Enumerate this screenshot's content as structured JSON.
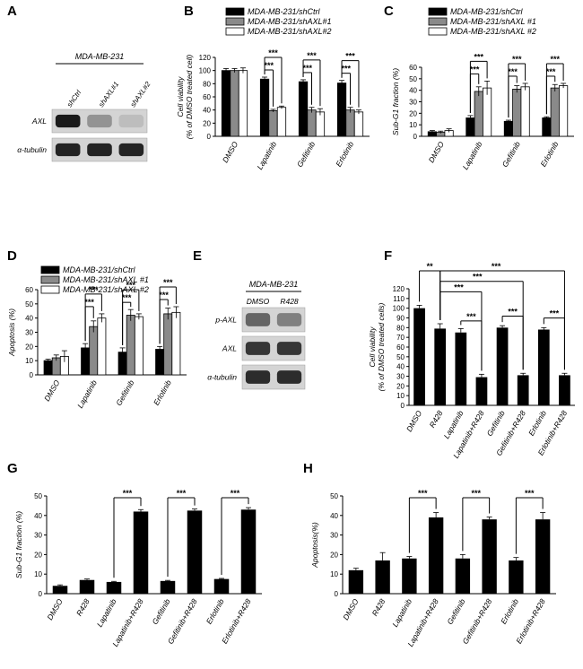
{
  "colors": {
    "black": "#000000",
    "gray": "#8a8a8a",
    "white": "#ffffff",
    "blot_bg": "#d4d4d4",
    "band": "#1a1a1a"
  },
  "blots": [
    {
      "letter": "A",
      "cell_line": "MDA-MB-231",
      "lanes": [
        "shCtrl",
        "shAXL#1",
        "shAXL#2"
      ],
      "rows": [
        {
          "label": "AXL",
          "intensity": [
            1.0,
            0.35,
            0.12
          ]
        },
        {
          "label": "α-tubulin",
          "intensity": [
            0.95,
            0.95,
            0.95
          ]
        }
      ]
    },
    {
      "letter": "E",
      "cell_line": "MDA-MB-231",
      "lanes": [
        "DMSO",
        "R428"
      ],
      "rows": [
        {
          "label": "p-AXL",
          "intensity": [
            0.6,
            0.45
          ]
        },
        {
          "label": "AXL",
          "intensity": [
            0.85,
            0.85
          ]
        },
        {
          "label": "α-tubulin",
          "intensity": [
            0.9,
            0.9
          ]
        }
      ]
    }
  ],
  "chart_data": [
    {
      "letter": "B",
      "type": "bar",
      "ylabel": [
        "Cell viability",
        "(% of DMSO treated cell)"
      ],
      "ylim": [
        0,
        120
      ],
      "yticks": [
        0,
        20,
        40,
        60,
        80,
        100,
        120
      ],
      "categories": [
        "DMSO",
        "Lapatinib",
        "Gefitinib",
        "Erlotinib"
      ],
      "legend": [
        "MDA-MB-231/shCtrl",
        "MDA-MB-231/shAXL#1",
        "MDA-MB-231/shAXL#2"
      ],
      "series": [
        {
          "name": "MDA-MB-231/shCtrl",
          "color": "black",
          "values": [
            100,
            87,
            83,
            81
          ],
          "errors": [
            3,
            3,
            3,
            4
          ]
        },
        {
          "name": "MDA-MB-231/shAXL#1",
          "color": "gray",
          "values": [
            100,
            39,
            40,
            40
          ],
          "errors": [
            3,
            2,
            4,
            4
          ]
        },
        {
          "name": "MDA-MB-231/shAXL#2",
          "color": "white",
          "values": [
            100,
            44,
            37,
            37
          ],
          "errors": [
            4,
            2,
            5,
            3
          ]
        }
      ],
      "sig": [
        {
          "cat": 1,
          "a": 0,
          "b": 1,
          "label": "***",
          "level": 0
        },
        {
          "cat": 1,
          "a": 0,
          "b": 2,
          "label": "***",
          "level": 1
        },
        {
          "cat": 2,
          "a": 0,
          "b": 1,
          "label": "***",
          "level": 0
        },
        {
          "cat": 2,
          "a": 0,
          "b": 2,
          "label": "***",
          "level": 1
        },
        {
          "cat": 3,
          "a": 0,
          "b": 1,
          "label": "***",
          "level": 0
        },
        {
          "cat": 3,
          "a": 0,
          "b": 2,
          "label": "***",
          "level": 1
        }
      ]
    },
    {
      "letter": "C",
      "type": "bar",
      "ylabel": [
        "Sub-G1 fraction (%)"
      ],
      "ylim": [
        0,
        60
      ],
      "yticks": [
        0,
        10,
        20,
        30,
        40,
        50,
        60
      ],
      "categories": [
        "DMSO",
        "Lapatinib",
        "Gefitinib",
        "Erlotinib"
      ],
      "legend": [
        "MDA-MB-231/shCtrl",
        "MDA-MB-231/shAXL #1",
        "MDA-MB-231/shAXL #2"
      ],
      "series": [
        {
          "name": "MDA-MB-231/shCtrl",
          "color": "black",
          "values": [
            4,
            16,
            13,
            16
          ],
          "errors": [
            1,
            2,
            1,
            1
          ]
        },
        {
          "name": "MDA-MB-231/shAXL #1",
          "color": "gray",
          "values": [
            3.5,
            39,
            41,
            42
          ],
          "errors": [
            1,
            4,
            3,
            3
          ]
        },
        {
          "name": "MDA-MB-231/shAXL #2",
          "color": "white",
          "values": [
            5,
            42,
            43,
            44
          ],
          "errors": [
            1.5,
            6,
            3,
            2
          ]
        }
      ],
      "sig": [
        {
          "cat": 1,
          "a": 0,
          "b": 1,
          "label": "***",
          "level": 0
        },
        {
          "cat": 1,
          "a": 0,
          "b": 2,
          "label": "***",
          "level": 1
        },
        {
          "cat": 2,
          "a": 0,
          "b": 1,
          "label": "***",
          "level": 0
        },
        {
          "cat": 2,
          "a": 0,
          "b": 2,
          "label": "***",
          "level": 1
        },
        {
          "cat": 3,
          "a": 0,
          "b": 1,
          "label": "***",
          "level": 0
        },
        {
          "cat": 3,
          "a": 0,
          "b": 2,
          "label": "***",
          "level": 1
        }
      ]
    },
    {
      "letter": "D",
      "type": "bar",
      "ylabel": [
        "Apoptosis (%)"
      ],
      "ylim": [
        0,
        60
      ],
      "yticks": [
        0,
        10,
        20,
        30,
        40,
        50,
        60
      ],
      "categories": [
        "DMSO",
        "Lapatinib",
        "Gefitinib",
        "Erlotinib"
      ],
      "legend": [
        "MDA-MB-231/shCtrl",
        "MDA-MB-231/shAXL #1",
        "MDA-MB-231/shAXL #2"
      ],
      "series": [
        {
          "name": "MDA-MB-231/shCtrl",
          "color": "black",
          "values": [
            10,
            19,
            16,
            18
          ],
          "errors": [
            1,
            3,
            3,
            2
          ]
        },
        {
          "name": "MDA-MB-231/shAXL #1",
          "color": "gray",
          "values": [
            12,
            34,
            42,
            43
          ],
          "errors": [
            2,
            4,
            4,
            4
          ]
        },
        {
          "name": "MDA-MB-231/shAXL #2",
          "color": "white",
          "values": [
            13,
            40,
            41,
            44
          ],
          "errors": [
            4,
            3,
            2,
            4
          ]
        }
      ],
      "sig": [
        {
          "cat": 1,
          "a": 0,
          "b": 1,
          "label": "***",
          "level": 0
        },
        {
          "cat": 1,
          "a": 0,
          "b": 2,
          "label": "***",
          "level": 1
        },
        {
          "cat": 2,
          "a": 0,
          "b": 1,
          "label": "***",
          "level": 0
        },
        {
          "cat": 2,
          "a": 0,
          "b": 2,
          "label": "***",
          "level": 1
        },
        {
          "cat": 3,
          "a": 0,
          "b": 1,
          "label": "***",
          "level": 0
        },
        {
          "cat": 3,
          "a": 0,
          "b": 2,
          "label": "***",
          "level": 1
        }
      ]
    },
    {
      "letter": "F",
      "type": "bar",
      "ylabel": [
        "Cell viability",
        "(% of DMSO treated cells)"
      ],
      "ylim": [
        0,
        120
      ],
      "yticks": [
        0,
        10,
        20,
        30,
        40,
        50,
        60,
        70,
        80,
        90,
        100,
        110,
        120
      ],
      "categories": [
        "DMSO",
        "R428",
        "Lapatinib",
        "Lapatinib+R428",
        "Gefitinib",
        "Gefitinib+R428",
        "Erlotinib",
        "Erlotinib+R428"
      ],
      "values": [
        100,
        79,
        75,
        29,
        80,
        31,
        78,
        31
      ],
      "errors": [
        3,
        5,
        4,
        3,
        2,
        2,
        2,
        2
      ],
      "sig": [
        {
          "a": 0,
          "b": 1,
          "label": "**",
          "level": 1,
          "topAt": "a"
        },
        {
          "a": 1,
          "b": 7,
          "label": "***",
          "level": 1,
          "topAt": "b"
        },
        {
          "a": 1,
          "b": 5,
          "label": "***",
          "level": 0.55,
          "topAt": "b"
        },
        {
          "a": 1,
          "b": 3,
          "label": "***",
          "level": 0.1,
          "topAt": "b"
        },
        {
          "a": 2,
          "b": 3,
          "label": "***",
          "level": 0,
          "topAt": "both"
        },
        {
          "a": 4,
          "b": 5,
          "label": "***",
          "level": 0,
          "topAt": "both"
        },
        {
          "a": 6,
          "b": 7,
          "label": "***",
          "level": 0,
          "topAt": "both"
        }
      ]
    },
    {
      "letter": "G",
      "type": "bar",
      "ylabel": [
        "Sub-G1 fraction (%)"
      ],
      "ylim": [
        0,
        50
      ],
      "yticks": [
        0,
        10,
        20,
        30,
        40,
        50
      ],
      "categories": [
        "DMSO",
        "R428",
        "Lapatinib",
        "Lapatinib+R428",
        "Gefitinib",
        "Gefitinib+R428",
        "Erlotinib",
        "Erlotinib+R428"
      ],
      "values": [
        4,
        7,
        6,
        42,
        6.5,
        42.5,
        7.5,
        43
      ],
      "errors": [
        0.5,
        0.5,
        0.3,
        1,
        0.3,
        0.8,
        0.3,
        1
      ],
      "sig": [
        {
          "a": 2,
          "b": 3,
          "label": "***",
          "level": 0,
          "topAt": "b"
        },
        {
          "a": 4,
          "b": 5,
          "label": "***",
          "level": 0,
          "topAt": "b"
        },
        {
          "a": 6,
          "b": 7,
          "label": "***",
          "level": 0,
          "topAt": "b"
        }
      ]
    },
    {
      "letter": "H",
      "type": "bar",
      "ylabel": [
        "Apoptosis(%)"
      ],
      "ylim": [
        0,
        50
      ],
      "yticks": [
        0,
        10,
        20,
        30,
        40,
        50
      ],
      "categories": [
        "DMSO",
        "R428",
        "Lapatinib",
        "Lapatinib+R428",
        "Gefitinib",
        "Gefitinib+R428",
        "Erlotinib",
        "Erlotinib+R428"
      ],
      "values": [
        12,
        17,
        18,
        39,
        18,
        38,
        17,
        38
      ],
      "errors": [
        1,
        4,
        1,
        2.5,
        2,
        1.2,
        1.5,
        3.5
      ],
      "sig": [
        {
          "a": 2,
          "b": 3,
          "label": "***",
          "level": 0,
          "topAt": "b"
        },
        {
          "a": 4,
          "b": 5,
          "label": "***",
          "level": 0,
          "topAt": "b"
        },
        {
          "a": 6,
          "b": 7,
          "label": "***",
          "level": 0,
          "topAt": "b"
        }
      ]
    }
  ]
}
